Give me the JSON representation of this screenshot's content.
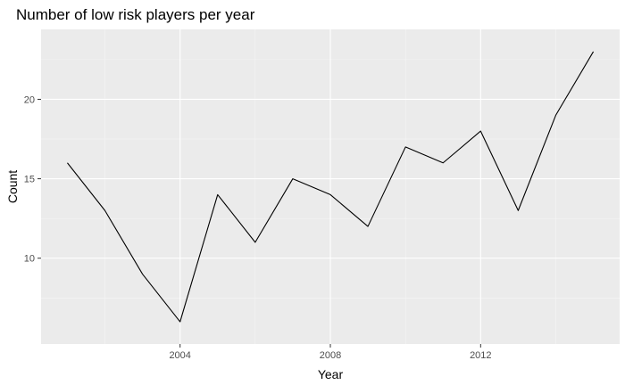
{
  "chart_data": {
    "type": "line",
    "title": "Number of low risk players per year",
    "xlabel": "Year",
    "ylabel": "Count",
    "x": [
      2001,
      2002,
      2003,
      2004,
      2005,
      2006,
      2007,
      2008,
      2009,
      2010,
      2011,
      2012,
      2013,
      2014,
      2015
    ],
    "series": [
      {
        "values": [
          16,
          13,
          9,
          6,
          14,
          11,
          15,
          14,
          12,
          17,
          16,
          18,
          13,
          19,
          23
        ]
      }
    ],
    "xlim": [
      2000.3,
      2015.7
    ],
    "ylim": [
      4.6,
      24.4
    ],
    "x_ticks": [
      2004,
      2008,
      2012
    ],
    "x_tick_labels": [
      "2004",
      "2008",
      "2012"
    ],
    "y_ticks": [
      10,
      15,
      20
    ],
    "y_tick_labels": [
      "10",
      "15",
      "20"
    ],
    "x_minor_ticks": [
      2002,
      2006,
      2010,
      2014
    ],
    "y_minor_ticks": [
      7.5,
      12.5,
      17.5,
      22.5
    ],
    "grid": true,
    "colors": {
      "panel_background": "#ebebeb",
      "grid_major": "#ffffff",
      "grid_minor": "#f5f5f5",
      "line": "#000000",
      "tick_mark": "#333333"
    }
  }
}
